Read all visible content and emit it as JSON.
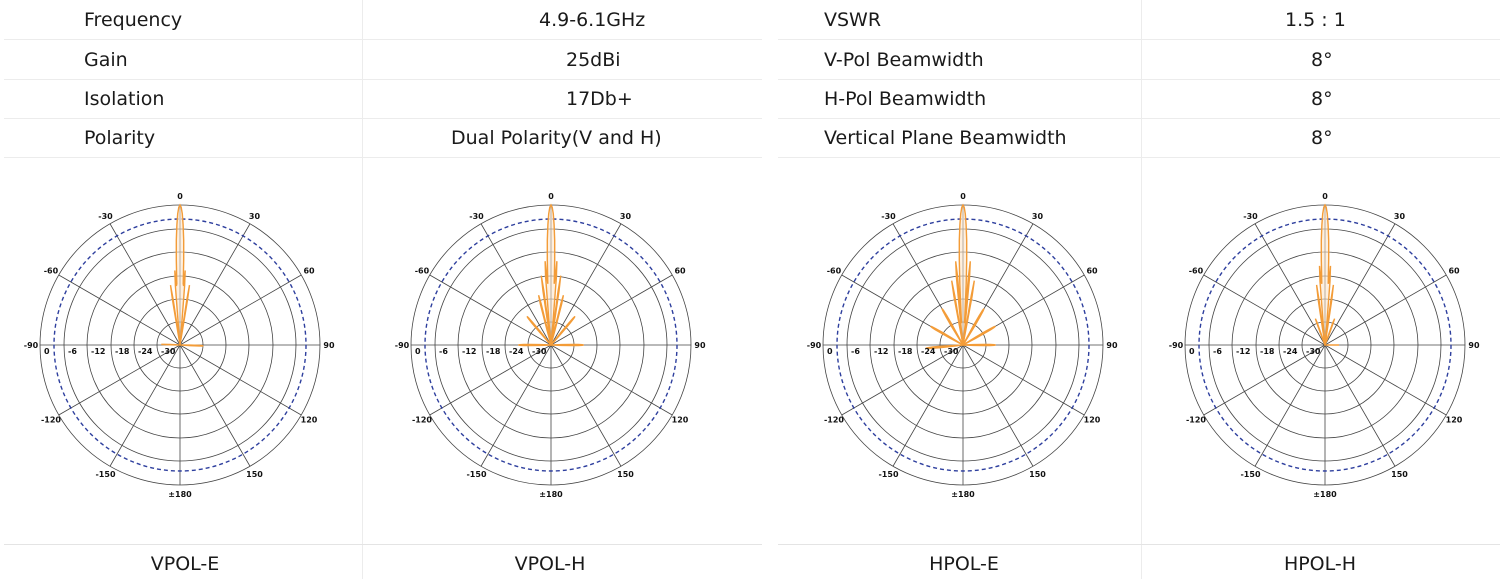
{
  "specs": {
    "left": [
      {
        "label": "Frequency",
        "value": "4.9-6.1GHz"
      },
      {
        "label": "Gain",
        "value": "25dBi"
      },
      {
        "label": "Isolation",
        "value": "17Db+"
      },
      {
        "label": "Polarity",
        "value": "Dual Polarity(V and H)"
      }
    ],
    "right": [
      {
        "label": "VSWR",
        "value": "1.5 : 1"
      },
      {
        "label": "V-Pol Beamwidth",
        "value": "8°"
      },
      {
        "label": "H-Pol Beamwidth",
        "value": "8°"
      },
      {
        "label": "Vertical Plane Beamwidth",
        "value": "8°"
      }
    ]
  },
  "colors": {
    "pattern": "#f39c38",
    "pattern_fill": "#fde3c6",
    "reference": "#2e3f9e",
    "grid": "#444444"
  },
  "chart_data": [
    {
      "type": "polar",
      "title": "VPOL-E",
      "angle_labels": [
        "0",
        "30",
        "60",
        "90",
        "120",
        "150",
        "±180",
        "-150",
        "-120",
        "-90",
        "-60",
        "-30"
      ],
      "radial_labels": [
        "0",
        "-6",
        "-12",
        "-18",
        "-24",
        "-30"
      ],
      "r_range_db": [
        -30,
        0
      ],
      "reference_level_db": -3,
      "lobes": [
        {
          "angle": 0,
          "gain_db": 0,
          "width": 4
        },
        {
          "angle": -4,
          "gain_db": -14,
          "width": 1.5
        },
        {
          "angle": 4,
          "gain_db": -14,
          "width": 1.5
        },
        {
          "angle": -9,
          "gain_db": -17,
          "width": 1.5
        },
        {
          "angle": 9,
          "gain_db": -17,
          "width": 1.5
        },
        {
          "angle": -88,
          "gain_db": -26,
          "width": 4
        },
        {
          "angle": 92,
          "gain_db": -25,
          "width": 5
        }
      ]
    },
    {
      "type": "polar",
      "title": "VPOL-H",
      "angle_labels": [
        "0",
        "30",
        "60",
        "90",
        "120",
        "150",
        "±180",
        "-150",
        "-120",
        "-90",
        "-60",
        "-30"
      ],
      "radial_labels": [
        "0",
        "-6",
        "-12",
        "-18",
        "-24",
        "-30"
      ],
      "r_range_db": [
        -30,
        0
      ],
      "reference_level_db": -3,
      "lobes": [
        {
          "angle": 0,
          "gain_db": 0,
          "width": 4
        },
        {
          "angle": -4,
          "gain_db": -12,
          "width": 1.5
        },
        {
          "angle": 4,
          "gain_db": -12,
          "width": 1.5
        },
        {
          "angle": -8,
          "gain_db": -15,
          "width": 1.5
        },
        {
          "angle": 8,
          "gain_db": -15,
          "width": 1.5
        },
        {
          "angle": -14,
          "gain_db": -19,
          "width": 2
        },
        {
          "angle": 14,
          "gain_db": -19,
          "width": 2
        },
        {
          "angle": -40,
          "gain_db": -22,
          "width": 4
        },
        {
          "angle": 40,
          "gain_db": -22,
          "width": 4
        },
        {
          "angle": -90,
          "gain_db": -23,
          "width": 5
        },
        {
          "angle": 90,
          "gain_db": -23,
          "width": 5
        }
      ]
    },
    {
      "type": "polar",
      "title": "HPOL-E",
      "angle_labels": [
        "0",
        "30",
        "60",
        "90",
        "120",
        "150",
        "±180",
        "-150",
        "-120",
        "-90",
        "-60",
        "-30"
      ],
      "radial_labels": [
        "0",
        "-6",
        "-12",
        "-18",
        "-24",
        "-30"
      ],
      "r_range_db": [
        -30,
        0
      ],
      "reference_level_db": -3,
      "lobes": [
        {
          "angle": 0,
          "gain_db": 0,
          "width": 4
        },
        {
          "angle": -5,
          "gain_db": -12,
          "width": 1.5
        },
        {
          "angle": 5,
          "gain_db": -12,
          "width": 1.5
        },
        {
          "angle": -10,
          "gain_db": -16,
          "width": 1.5
        },
        {
          "angle": 10,
          "gain_db": -16,
          "width": 1.5
        },
        {
          "angle": -30,
          "gain_db": -21,
          "width": 4
        },
        {
          "angle": 30,
          "gain_db": -21,
          "width": 4
        },
        {
          "angle": -60,
          "gain_db": -22,
          "width": 5
        },
        {
          "angle": 60,
          "gain_db": -22,
          "width": 5
        },
        {
          "angle": -95,
          "gain_db": -22,
          "width": 5
        },
        {
          "angle": 90,
          "gain_db": -23,
          "width": 5
        }
      ]
    },
    {
      "type": "polar",
      "title": "HPOL-H",
      "angle_labels": [
        "0",
        "30",
        "60",
        "90",
        "120",
        "150",
        "±180",
        "-150",
        "-120",
        "-90",
        "-60",
        "-30"
      ],
      "radial_labels": [
        "0",
        "-6",
        "-12",
        "-18",
        "-24",
        "-30"
      ],
      "r_range_db": [
        -30,
        0
      ],
      "reference_level_db": -3,
      "lobes": [
        {
          "angle": 0,
          "gain_db": 0,
          "width": 4
        },
        {
          "angle": -4,
          "gain_db": -13,
          "width": 1.5
        },
        {
          "angle": 4,
          "gain_db": -13,
          "width": 1.5
        },
        {
          "angle": -8,
          "gain_db": -17,
          "width": 1.5
        },
        {
          "angle": 8,
          "gain_db": -17,
          "width": 1.5
        },
        {
          "angle": -20,
          "gain_db": -24,
          "width": 3
        },
        {
          "angle": 20,
          "gain_db": -24,
          "width": 3
        },
        {
          "angle": 90,
          "gain_db": -27,
          "width": 4
        }
      ]
    }
  ]
}
